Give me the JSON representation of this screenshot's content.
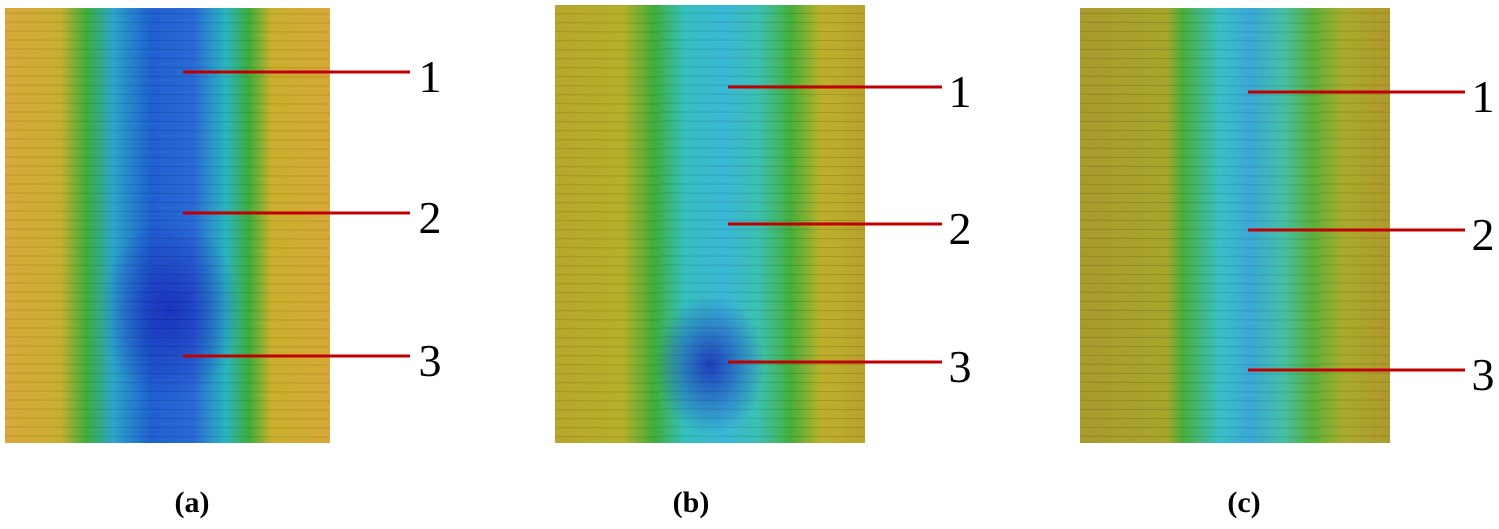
{
  "panels": [
    {
      "caption": "(a)",
      "markers": [
        "1",
        "2",
        "3"
      ]
    },
    {
      "caption": "(b)",
      "markers": [
        "1",
        "2",
        "3"
      ]
    },
    {
      "caption": "(c)",
      "markers": [
        "1",
        "2",
        "3"
      ]
    }
  ]
}
